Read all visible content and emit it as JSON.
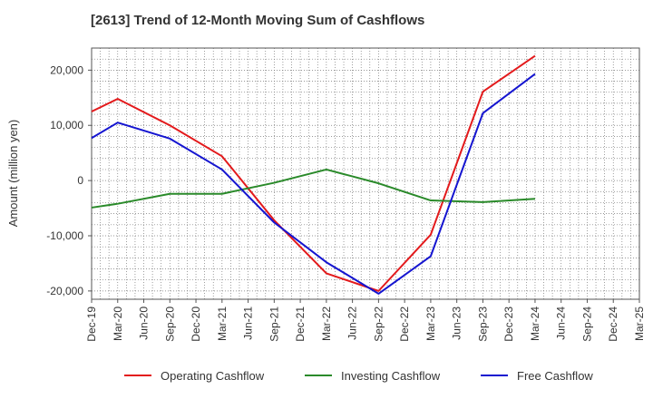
{
  "chart_data": {
    "type": "line",
    "title": "[2613]  Trend of 12-Month Moving Sum of Cashflows",
    "xlabel": "",
    "ylabel": "Amount (million yen)",
    "categories": [
      "Dec-19",
      "Mar-20",
      "Jun-20",
      "Sep-20",
      "Dec-20",
      "Mar-21",
      "Jun-21",
      "Sep-21",
      "Dec-21",
      "Mar-22",
      "Jun-22",
      "Sep-22",
      "Dec-22",
      "Mar-23",
      "Jun-23",
      "Sep-23",
      "Dec-23",
      "Mar-24",
      "Jun-24",
      "Sep-24",
      "Dec-24",
      "Mar-25"
    ],
    "ylim": [
      -21500,
      24000
    ],
    "yticks": [
      -20000,
      -10000,
      0,
      10000,
      20000
    ],
    "ytick_labels": [
      "-20,000",
      "-10,000",
      "0",
      "10,000",
      "20,000"
    ],
    "grid": true,
    "legend_position": "bottom",
    "series": [
      {
        "name": "Operating Cashflow",
        "color": "#e31a1c",
        "values": [
          12500,
          14800,
          null,
          10000,
          null,
          4400,
          null,
          -7200,
          null,
          -16800,
          null,
          -20000,
          null,
          -9800,
          null,
          16100,
          null,
          22600,
          null,
          null,
          null,
          null
        ]
      },
      {
        "name": "Investing Cashflow",
        "color": "#2a8a2a",
        "values": [
          -4900,
          -4200,
          null,
          -2400,
          null,
          -2400,
          null,
          -400,
          null,
          2000,
          null,
          -500,
          null,
          -3600,
          null,
          -3900,
          null,
          -3300,
          null,
          null,
          null,
          null
        ]
      },
      {
        "name": "Free Cashflow",
        "color": "#1515d0",
        "values": [
          7700,
          10500,
          null,
          7600,
          null,
          2000,
          null,
          -7600,
          null,
          -14800,
          null,
          -20500,
          null,
          -13700,
          null,
          12200,
          null,
          19300,
          null,
          null,
          null,
          null
        ]
      }
    ]
  }
}
